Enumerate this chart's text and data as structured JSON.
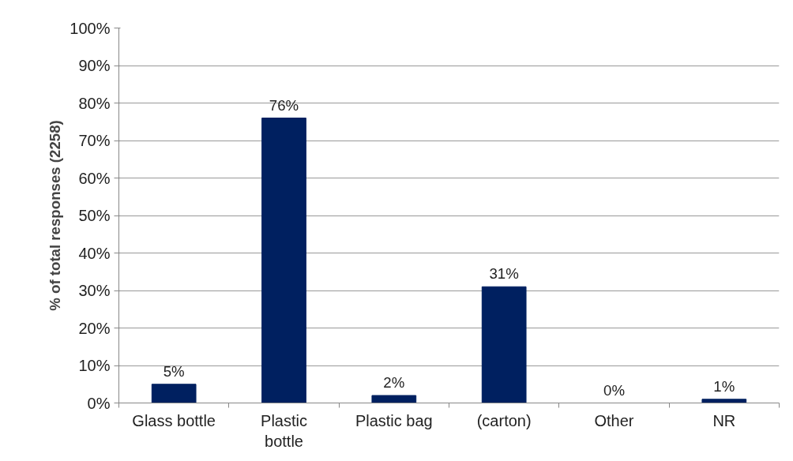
{
  "chart_data": {
    "type": "bar",
    "ylabel": "% of total responses (2258)",
    "categories": [
      "Glass bottle",
      "Plastic bottle",
      "Plastic bag",
      "(carton)",
      "Other",
      "NR"
    ],
    "values": [
      5,
      76,
      2,
      31,
      0,
      1
    ],
    "value_labels": [
      "5%",
      "76%",
      "2%",
      "31%",
      "0%",
      "1%"
    ],
    "color": "#002060",
    "ylim": [
      0,
      100
    ],
    "yticks": [
      {
        "value": 0,
        "label": "0%"
      },
      {
        "value": 10,
        "label": "10%"
      },
      {
        "value": 20,
        "label": "20%"
      },
      {
        "value": 30,
        "label": "30%"
      },
      {
        "value": 40,
        "label": "40%"
      },
      {
        "value": 50,
        "label": "50%"
      },
      {
        "value": 60,
        "label": "60%"
      },
      {
        "value": 70,
        "label": "70%"
      },
      {
        "value": 80,
        "label": "80%"
      },
      {
        "value": 90,
        "label": "90%"
      },
      {
        "value": 100,
        "label": "100%"
      }
    ],
    "grid": "y"
  }
}
